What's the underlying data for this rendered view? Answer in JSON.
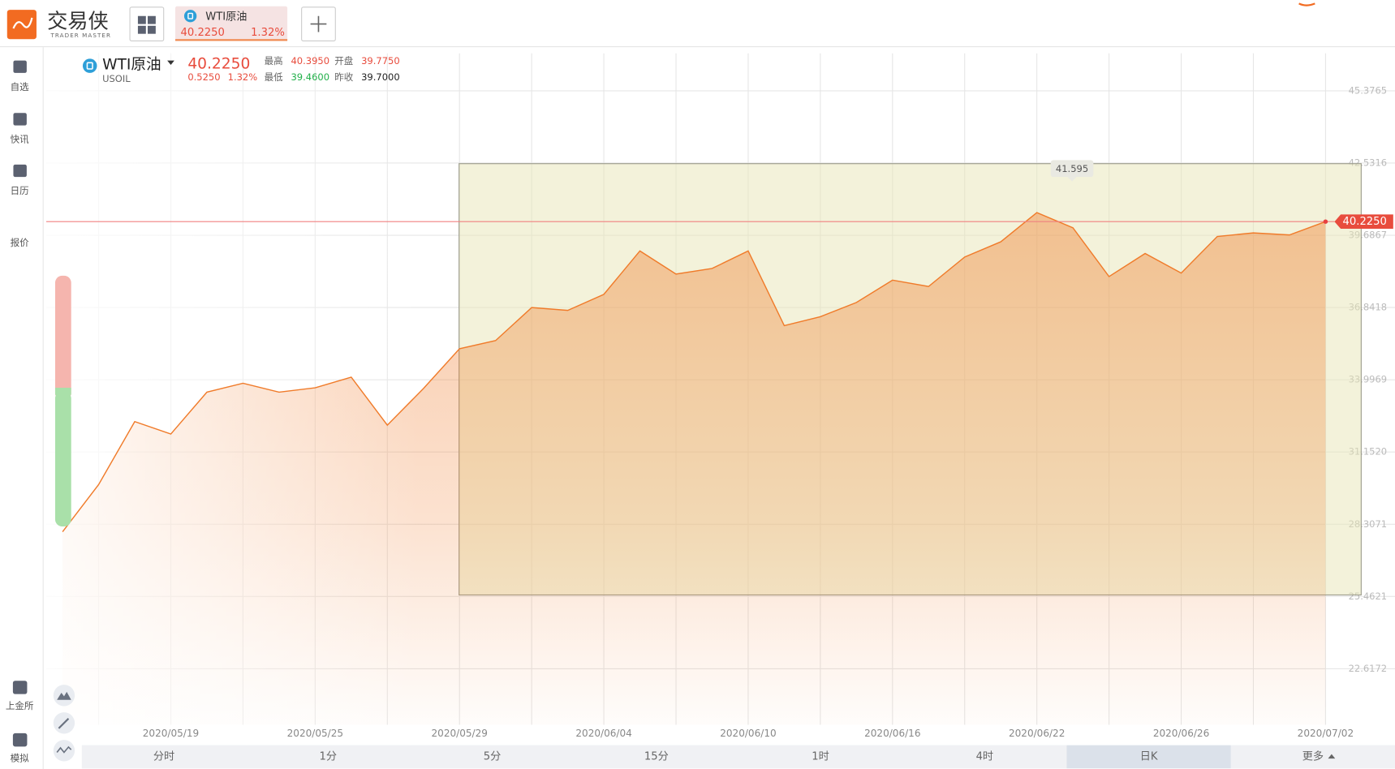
{
  "header": {
    "logo_text": "交易侠",
    "logo_subtitle": "TRADER MASTER",
    "tab": {
      "name": "WTI原油",
      "price": "40.2250",
      "change_pct": "1.32%"
    }
  },
  "sidebar": [
    "自选",
    "快讯",
    "日历",
    "报价",
    "上金所",
    "模拟"
  ],
  "quote": {
    "name": "WTI原油",
    "symbol": "USOIL",
    "price": "40.2250",
    "change": "0.5250",
    "change_pct": "1.32%",
    "high_label": "最高",
    "high": "40.3950",
    "open_label": "开盘",
    "open": "39.7750",
    "low_label": "最低",
    "low": "39.4600",
    "prev_close_label": "昨收",
    "prev_close": "39.7000"
  },
  "timeframes": [
    "分时",
    "1分",
    "5分",
    "15分",
    "1时",
    "4时",
    "日K",
    "更多"
  ],
  "chart_data": {
    "type": "line",
    "color": "#f07b2a",
    "grid": true,
    "categories": [
      null,
      null,
      null,
      "2020/05/19",
      null,
      null,
      null,
      "2020/05/25",
      null,
      null,
      null,
      "2020/05/29",
      null,
      null,
      null,
      "2020/06/04",
      null,
      null,
      null,
      "2020/06/10",
      null,
      null,
      null,
      "2020/06/16",
      null,
      null,
      null,
      "2020/06/22",
      null,
      null,
      null,
      "2020/06/26",
      null,
      null,
      null,
      "2020/07/02"
    ],
    "values": [
      28.01,
      29.87,
      32.35,
      31.86,
      33.51,
      33.86,
      33.51,
      33.68,
      34.1,
      32.21,
      33.65,
      35.22,
      35.54,
      36.84,
      36.73,
      37.36,
      39.07,
      38.16,
      38.38,
      39.07,
      36.13,
      36.48,
      37.04,
      37.92,
      37.67,
      38.83,
      39.43,
      40.58,
      39.98,
      38.06,
      38.97,
      38.2,
      39.64,
      39.78,
      39.7,
      40.225
    ],
    "ylim": [
      20.41,
      46.85
    ],
    "yticks": [
      22.6172,
      25.4621,
      28.3071,
      {
        "value": 31.152,
        "label": "31.1520"
      },
      33.9969,
      36.8418,
      39.6867,
      42.5316,
      45.3765
    ],
    "annotation": "41.595",
    "last_price_label": "40.2250"
  }
}
